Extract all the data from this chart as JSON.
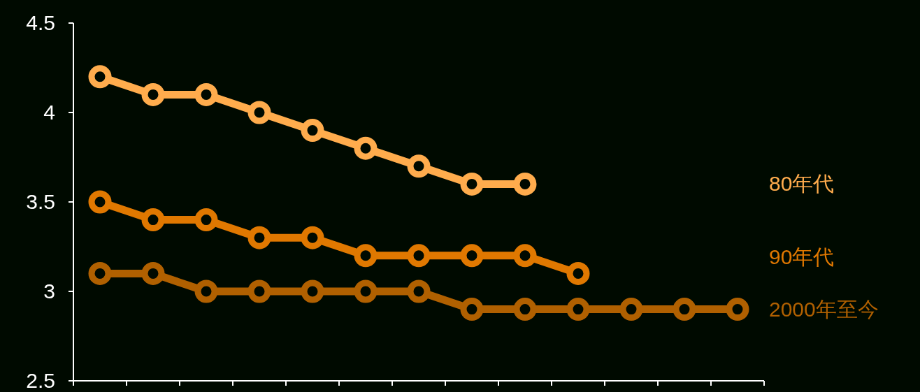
{
  "chart_data": {
    "type": "line",
    "categories": [
      null,
      null,
      null,
      null,
      null,
      null,
      null,
      null,
      null,
      null,
      null,
      null,
      null
    ],
    "series": [
      {
        "name": "80年代",
        "color": "#ffac4d",
        "values": [
          4.2,
          4.1,
          4.1,
          4.0,
          3.9,
          3.8,
          3.7,
          3.6,
          3.6,
          null,
          null,
          null,
          null
        ]
      },
      {
        "name": "90年代",
        "color": "#e07800",
        "values": [
          3.5,
          3.4,
          3.4,
          3.3,
          3.3,
          3.2,
          3.2,
          3.2,
          3.2,
          3.1,
          null,
          null,
          null
        ]
      },
      {
        "name": "2000年至今",
        "color": "#b06000",
        "values": [
          3.1,
          3.1,
          3.0,
          3.0,
          3.0,
          3.0,
          3.0,
          2.9,
          2.9,
          2.9,
          2.9,
          2.9,
          2.9
        ]
      }
    ],
    "ylim": [
      2.5,
      4.5
    ],
    "yticks": [
      2.5,
      3,
      3.5,
      4,
      4.5
    ],
    "grid": false,
    "legend": false,
    "marker": "circle",
    "line_style": "solid"
  }
}
